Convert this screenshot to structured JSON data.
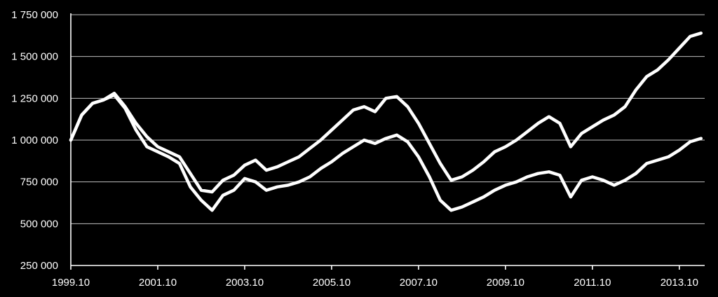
{
  "chart_data": {
    "type": "line",
    "title": "",
    "xlabel": "",
    "ylabel": "",
    "x_ticks": [
      "1999.10",
      "2001.10",
      "2003.10",
      "2005.10",
      "2007.10",
      "2009.10",
      "2011.10",
      "2013.10"
    ],
    "y_ticks": [
      "250 000",
      "500 000",
      "750 000",
      "1 000 000",
      "1 250 000",
      "1 500 000",
      "1 750 000"
    ],
    "y_tick_values": [
      250000,
      500000,
      750000,
      1000000,
      1250000,
      1500000,
      1750000
    ],
    "ylim": [
      250000,
      1750000
    ],
    "xlim": [
      "1999-10",
      "2014-05"
    ],
    "grid": "horizontal",
    "colors": {
      "background": "#000000",
      "series": "#ffffff",
      "grid": "#bfbfbf"
    },
    "series": [
      {
        "x": [
          "1999-10",
          "2000-01",
          "2000-04",
          "2000-07",
          "2000-10",
          "2001-01",
          "2001-04",
          "2001-07",
          "2001-10",
          "2002-01",
          "2002-04",
          "2002-07",
          "2002-10",
          "2003-01",
          "2003-04",
          "2003-07",
          "2003-10",
          "2004-01",
          "2004-04",
          "2004-07",
          "2004-10",
          "2005-01",
          "2005-04",
          "2005-07",
          "2005-10",
          "2006-01",
          "2006-04",
          "2006-07",
          "2006-10",
          "2007-01",
          "2007-04",
          "2007-07",
          "2007-10",
          "2008-01",
          "2008-04",
          "2008-07",
          "2008-10",
          "2009-01",
          "2009-04",
          "2009-07",
          "2009-10",
          "2010-01",
          "2010-04",
          "2010-07",
          "2010-10",
          "2011-01",
          "2011-04",
          "2011-07",
          "2011-10",
          "2012-01",
          "2012-04",
          "2012-07",
          "2012-10",
          "2013-01",
          "2013-04",
          "2013-07",
          "2013-10",
          "2014-01",
          "2014-04"
        ],
        "values": [
          1000000,
          1150000,
          1220000,
          1240000,
          1280000,
          1200000,
          1100000,
          1020000,
          960000,
          930000,
          900000,
          800000,
          700000,
          690000,
          760000,
          790000,
          850000,
          880000,
          820000,
          840000,
          870000,
          900000,
          950000,
          1000000,
          1060000,
          1120000,
          1180000,
          1200000,
          1170000,
          1250000,
          1260000,
          1200000,
          1100000,
          980000,
          860000,
          760000,
          780000,
          820000,
          870000,
          930000,
          960000,
          1000000,
          1050000,
          1100000,
          1140000,
          1100000,
          960000,
          1040000,
          1080000,
          1120000,
          1150000,
          1200000,
          1300000,
          1380000,
          1420000,
          1480000,
          1550000,
          1620000,
          1640000
        ]
      },
      {
        "x": [
          "1999-10",
          "2000-01",
          "2000-04",
          "2000-07",
          "2000-10",
          "2001-01",
          "2001-04",
          "2001-07",
          "2001-10",
          "2002-01",
          "2002-04",
          "2002-07",
          "2002-10",
          "2003-01",
          "2003-04",
          "2003-07",
          "2003-10",
          "2004-01",
          "2004-04",
          "2004-07",
          "2004-10",
          "2005-01",
          "2005-04",
          "2005-07",
          "2005-10",
          "2006-01",
          "2006-04",
          "2006-07",
          "2006-10",
          "2007-01",
          "2007-04",
          "2007-07",
          "2007-10",
          "2008-01",
          "2008-04",
          "2008-07",
          "2008-10",
          "2009-01",
          "2009-04",
          "2009-07",
          "2009-10",
          "2010-01",
          "2010-04",
          "2010-07",
          "2010-10",
          "2011-01",
          "2011-04",
          "2011-07",
          "2011-10",
          "2012-01",
          "2012-04",
          "2012-07",
          "2012-10",
          "2013-01",
          "2013-04",
          "2013-07",
          "2013-10",
          "2014-01",
          "2014-04"
        ],
        "values": [
          1000000,
          1150000,
          1220000,
          1240000,
          1270000,
          1190000,
          1060000,
          960000,
          930000,
          900000,
          860000,
          720000,
          640000,
          580000,
          670000,
          700000,
          770000,
          750000,
          700000,
          720000,
          730000,
          750000,
          780000,
          830000,
          870000,
          920000,
          960000,
          1000000,
          980000,
          1010000,
          1030000,
          990000,
          900000,
          780000,
          640000,
          580000,
          600000,
          630000,
          660000,
          700000,
          730000,
          750000,
          780000,
          800000,
          810000,
          790000,
          660000,
          760000,
          780000,
          760000,
          730000,
          760000,
          800000,
          860000,
          880000,
          900000,
          940000,
          990000,
          1010000
        ]
      }
    ]
  }
}
